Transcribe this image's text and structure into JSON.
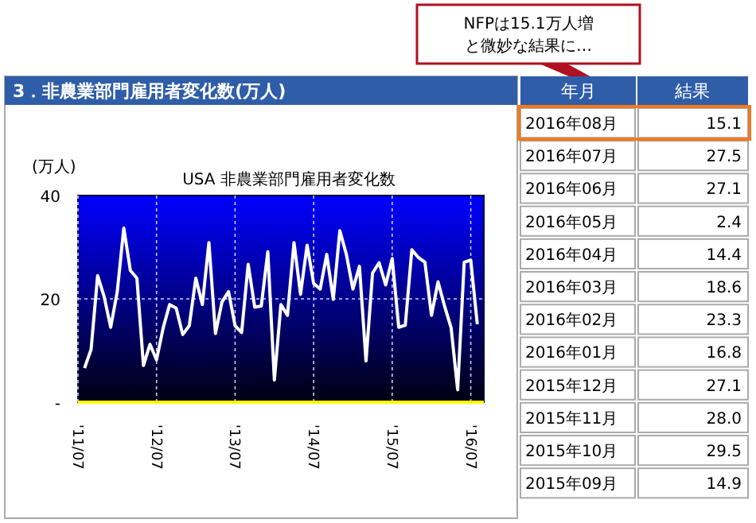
{
  "chart_data": [
    {
      "type": "line",
      "title": "USA 非農業部門雇用者変化数",
      "ylabel": "(万人)",
      "annotations": [
        "3．非農業部門雇用者変化数(万人)",
        "NFPは15.1万人増と微妙な結果に…"
      ],
      "x": [
        "2011-08",
        "2011-09",
        "2011-10",
        "2011-11",
        "2011-12",
        "2012-01",
        "2012-02",
        "2012-03",
        "2012-04",
        "2012-05",
        "2012-06",
        "2012-07",
        "2012-08",
        "2012-09",
        "2012-10",
        "2012-11",
        "2012-12",
        "2013-01",
        "2013-02",
        "2013-03",
        "2013-04",
        "2013-05",
        "2013-06",
        "2013-07",
        "2013-08",
        "2013-09",
        "2013-10",
        "2013-11",
        "2013-12",
        "2014-01",
        "2014-02",
        "2014-03",
        "2014-04",
        "2014-05",
        "2014-06",
        "2014-07",
        "2014-08",
        "2014-09",
        "2014-10",
        "2014-11",
        "2014-12",
        "2015-01",
        "2015-02",
        "2015-03",
        "2015-04",
        "2015-05",
        "2015-06",
        "2015-07",
        "2015-08",
        "2015-09",
        "2015-10",
        "2015-11",
        "2015-12",
        "2016-01",
        "2016-02",
        "2016-03",
        "2016-04",
        "2016-05",
        "2016-06",
        "2016-07",
        "2016-08"
      ],
      "series": [
        {
          "color": "#ffffff",
          "values": [
            6.6,
            10.2,
            24.5,
            20.4,
            14.5,
            21.4,
            33.7,
            25.5,
            24,
            7.1,
            11.2,
            8.2,
            14.3,
            18.9,
            18.2,
            13.1,
            14.8,
            24,
            18.9,
            30.9,
            13.3,
            19.4,
            21.4,
            14.8,
            13.5,
            26.7,
            18.4,
            18.6,
            29.1,
            4.3,
            18.9,
            16.8,
            30.9,
            20.9,
            30.4,
            23.0,
            21.9,
            28.6,
            19.9,
            33.2,
            28.6,
            21.9,
            26.3,
            8.0,
            25.0,
            27.0,
            22.7,
            27.8,
            14.5,
            14.9,
            29.5,
            28.0,
            27.1,
            16.8,
            23.3,
            18.6,
            14.4,
            2.4,
            27.1,
            27.5,
            15.1
          ]
        }
      ],
      "xlim": [
        "2011-07",
        "2016-09"
      ],
      "ylim": [
        0,
        40
      ],
      "xticks": [
        {
          "value": "2011-07",
          "label": "'11/07"
        },
        {
          "value": "2012-07",
          "label": "'12/07"
        },
        {
          "value": "2013-07",
          "label": "'13/07"
        },
        {
          "value": "2014-07",
          "label": "'14/07"
        },
        {
          "value": "2015-07",
          "label": "'15/07"
        },
        {
          "value": "2016-07",
          "label": "'16/07"
        }
      ],
      "yticks": [
        {
          "value": 0,
          "label": "-"
        },
        20,
        40
      ],
      "grid": true
    },
    {
      "type": "other",
      "xlabel": "年月",
      "ylabel": "結果",
      "categories": [
        "2016年08月",
        "2016年07月",
        "2016年06月",
        "2016年05月",
        "2016年04月",
        "2016年03月",
        "2016年02月",
        "2016年01月",
        "2015年12月",
        "2015年11月",
        "2015年10月",
        "2015年09月"
      ],
      "values": [
        15.1,
        27.5,
        27.1,
        2.4,
        14.4,
        18.6,
        23.3,
        16.8,
        27.1,
        28.0,
        29.5,
        14.9
      ],
      "value_labels": [
        "15.1",
        "27.5",
        "27.1",
        "2.4",
        "14.4",
        "18.6",
        "23.3",
        "16.8",
        "27.1",
        "28.0",
        "29.5",
        "14.9"
      ]
    }
  ]
}
